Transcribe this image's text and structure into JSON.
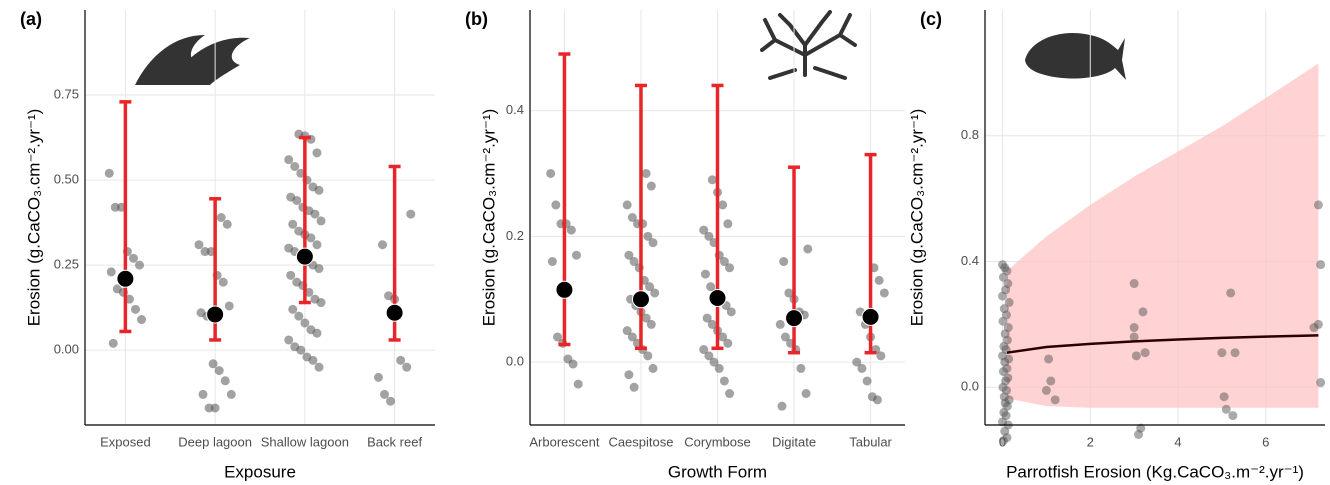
{
  "chart_data": [
    {
      "type": "jitter",
      "label": "(a)",
      "x_label": "Exposure",
      "y_label": "Erosion (g.CaCO₃.cm⁻².yr⁻¹)",
      "categories": [
        "Exposed",
        "Deep lagoon",
        "Shallow lagoon",
        "Back reef"
      ],
      "values": [
        0.21,
        0.105,
        0.275,
        0.11
      ],
      "error_lower": [
        0.055,
        0.03,
        0.14,
        0.03
      ],
      "error_upper": [
        0.73,
        0.445,
        0.625,
        0.54
      ],
      "points": [
        [
          0.52,
          0.42,
          0.42,
          0.29,
          0.27,
          0.25,
          0.23,
          0.18,
          0.17,
          0.15,
          0.12,
          0.09,
          0.02
        ],
        [
          0.39,
          0.37,
          0.31,
          0.29,
          0.29,
          0.22,
          0.2,
          0.13,
          0.11,
          0.1,
          -0.04,
          -0.06,
          -0.09,
          -0.13,
          -0.13,
          -0.17,
          -0.17
        ],
        [
          0.635,
          0.63,
          0.62,
          0.58,
          0.56,
          0.54,
          0.52,
          0.5,
          0.48,
          0.47,
          0.45,
          0.44,
          0.42,
          0.41,
          0.4,
          0.38,
          0.37,
          0.35,
          0.34,
          0.33,
          0.31,
          0.3,
          0.29,
          0.28,
          0.26,
          0.25,
          0.24,
          0.22,
          0.2,
          0.19,
          0.17,
          0.15,
          0.14,
          0.12,
          0.1,
          0.08,
          0.06,
          0.05,
          0.03,
          0.01,
          0.0,
          -0.02,
          -0.03,
          -0.05
        ],
        [
          0.4,
          0.31,
          0.16,
          0.15,
          -0.03,
          -0.05,
          -0.08,
          -0.13,
          -0.15
        ]
      ],
      "ylim": [
        -0.22,
        1.0
      ],
      "yticks": [
        {
          "value": 0,
          "label": "0.00"
        },
        {
          "value": 0.25,
          "label": "0.25"
        },
        {
          "value": 0.5,
          "label": "0.50"
        },
        {
          "value": 0.75,
          "label": "0.75"
        }
      ],
      "point_color": "#555555",
      "bar_color": "#e8262a",
      "mean_color": "#000000",
      "grid": true
    },
    {
      "type": "jitter",
      "label": "(b)",
      "x_label": "Growth Form",
      "y_label": "Erosion (g.CaCO₃.cm⁻².yr⁻¹)",
      "categories": [
        "Arborescent",
        "Caespitose",
        "Corymbose",
        "Digitate",
        "Tabular"
      ],
      "values": [
        0.115,
        0.1,
        0.102,
        0.07,
        0.072
      ],
      "error_lower": [
        0.028,
        0.022,
        0.022,
        0.015,
        0.015
      ],
      "error_upper": [
        0.49,
        0.44,
        0.44,
        0.31,
        0.33
      ],
      "points": [
        [
          0.3,
          0.25,
          0.22,
          0.22,
          0.21,
          0.17,
          0.16,
          0.04,
          0.03,
          0.005,
          -0.003,
          -0.035
        ],
        [
          0.3,
          0.28,
          0.25,
          0.23,
          0.22,
          0.22,
          0.2,
          0.19,
          0.17,
          0.16,
          0.15,
          0.13,
          0.12,
          0.11,
          0.1,
          0.09,
          0.08,
          0.07,
          0.06,
          0.05,
          0.04,
          0.03,
          0.02,
          0.01,
          -0.01,
          -0.02,
          -0.04
        ],
        [
          0.29,
          0.27,
          0.25,
          0.22,
          0.21,
          0.2,
          0.19,
          0.17,
          0.16,
          0.15,
          0.14,
          0.12,
          0.11,
          0.1,
          0.09,
          0.08,
          0.07,
          0.06,
          0.05,
          0.04,
          0.03,
          0.02,
          0.01,
          0,
          -0.01,
          -0.03,
          -0.05
        ],
        [
          0.18,
          0.16,
          0.11,
          0.1,
          0.08,
          0.075,
          0.06,
          0.04,
          0.03,
          0.02,
          -0.01,
          -0.05,
          -0.07
        ],
        [
          0.15,
          0.13,
          0.11,
          0.08,
          0.06,
          0.04,
          0.02,
          0.01,
          0,
          -0.01,
          -0.03,
          -0.055,
          -0.06
        ]
      ],
      "ylim": [
        -0.1,
        0.56
      ],
      "yticks": [
        {
          "value": 0,
          "label": "0.0"
        },
        {
          "value": 0.2,
          "label": "0.2"
        },
        {
          "value": 0.4,
          "label": "0.4"
        }
      ],
      "point_color": "#555555",
      "bar_color": "#e8262a",
      "mean_color": "#000000",
      "grid": true
    },
    {
      "type": "scatter",
      "label": "(c)",
      "x_label": "Parrotfish Erosion (Kg.CaCO₃.m⁻².yr⁻¹)",
      "y_label": "Erosion (g.CaCO₃.cm⁻².yr⁻¹)",
      "x": [
        0,
        0.05,
        0.1,
        0.02,
        0.12,
        0.07,
        0,
        0.15,
        0.04,
        0.09,
        0.01,
        0.13,
        0.06,
        0.11,
        0.03,
        0.08,
        0,
        0.14,
        0.05,
        0.1,
        0.02,
        0.12,
        0.07,
        0.01,
        0.09,
        0.04,
        0.15,
        0.06,
        0.11,
        0.03,
        0.08,
        0,
        0.13,
        0.05,
        0.1,
        0.02,
        1.0,
        1.05,
        1.1,
        1.2,
        3.0,
        3.0,
        3.05,
        3.1,
        3.15,
        3.2,
        3.25,
        3.0,
        5.0,
        5.05,
        5.1,
        5.2,
        5.25,
        5.3,
        7.1,
        7.2,
        7.25,
        7.25,
        7.2
      ],
      "y": [
        0.39,
        0.38,
        0.37,
        0.35,
        0.33,
        0.31,
        0.29,
        0.27,
        0.25,
        0.23,
        0.21,
        0.19,
        0.17,
        0.15,
        0.13,
        0.12,
        0.1,
        0.09,
        0.08,
        0.06,
        0.05,
        0.03,
        0.02,
        0.0,
        -0.01,
        -0.03,
        -0.04,
        -0.05,
        -0.06,
        -0.08,
        -0.09,
        -0.11,
        -0.12,
        -0.14,
        -0.16,
        -0.17,
        -0.01,
        0.09,
        0.02,
        -0.04,
        0.33,
        0.19,
        0.1,
        -0.15,
        -0.13,
        0.24,
        0.11,
        0.16,
        0.11,
        -0.03,
        -0.07,
        0.3,
        -0.09,
        0.11,
        0.19,
        0.58,
        0.39,
        0.015,
        0.2
      ],
      "fit_x": [
        0.1,
        1,
        2,
        3,
        4,
        5,
        6,
        7.2
      ],
      "fit": [
        0.11,
        0.128,
        0.138,
        0.146,
        0.152,
        0.157,
        0.161,
        0.165
      ],
      "fit_lower": [
        -0.035,
        -0.06,
        -0.065,
        -0.065,
        -0.065,
        -0.065,
        -0.065,
        -0.065
      ],
      "fit_upper": [
        0.37,
        0.48,
        0.58,
        0.67,
        0.75,
        0.83,
        0.92,
        1.03
      ],
      "xlim": [
        -0.4,
        7.35
      ],
      "ylim": [
        -0.12,
        1.2
      ],
      "xticks": [
        0,
        2,
        4,
        6
      ],
      "yticks": [
        {
          "value": 0,
          "label": "0.0"
        },
        {
          "value": 0.4,
          "label": "0.4"
        },
        {
          "value": 0.8,
          "label": "0.8"
        }
      ],
      "point_color": "#555555",
      "fit_color": "#2a0000",
      "band_color": "#ffc0c0",
      "grid": true
    }
  ]
}
